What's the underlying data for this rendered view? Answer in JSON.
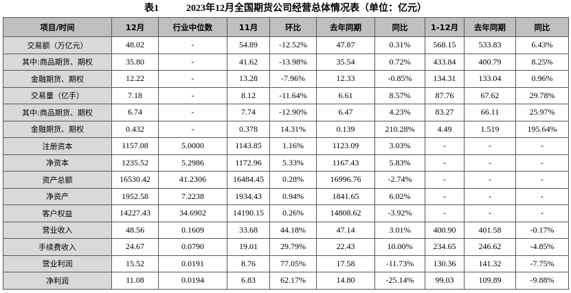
{
  "title": {
    "label": "表1",
    "text": "2023年12月全国期货公司经营总体情况表（单位：亿元）"
  },
  "table": {
    "header": [
      "项目/时间",
      "12月",
      "行业中位数",
      "11月",
      "环比",
      "去年同期",
      "同比",
      "1-12月",
      "去年同期",
      "同比"
    ],
    "rows": [
      [
        "交易额（万亿元）",
        "48.02",
        "-",
        "54.89",
        "-12.52%",
        "47.87",
        "0.31%",
        "568.15",
        "533.83",
        "6.43%"
      ],
      [
        "其中:商品期货、期权",
        "35.80",
        "-",
        "41.62",
        "-13.98%",
        "35.54",
        "0.72%",
        "433.84",
        "400.79",
        "8.25%"
      ],
      [
        "金融期货、期权",
        "12.22",
        "-",
        "13.28",
        "-7.96%",
        "12.33",
        "-0.85%",
        "134.31",
        "133.04",
        "0.96%"
      ],
      [
        "交易量（亿手）",
        "7.18",
        "-",
        "8.12",
        "-11.64%",
        "6.61",
        "8.57%",
        "87.76",
        "67.62",
        "29.78%"
      ],
      [
        "其中:商品期货、期权",
        "6.74",
        "-",
        "7.74",
        "-12.90%",
        "6.47",
        "4.23%",
        "83.27",
        "66.11",
        "25.97%"
      ],
      [
        "金融期货、期权",
        "0.432",
        "-",
        "0.378",
        "14.31%",
        "0.139",
        "210.28%",
        "4.49",
        "1.519",
        "195.64%"
      ],
      [
        "注册资本",
        "1157.08",
        "5.0000",
        "1143.85",
        "1.16%",
        "1123.09",
        "3.03%",
        "-",
        "-",
        "-"
      ],
      [
        "净资本",
        "1235.52",
        "5.2986",
        "1172.96",
        "5.33%",
        "1167.43",
        "5.83%",
        "-",
        "-",
        "-"
      ],
      [
        "资产总额",
        "16530.42",
        "41.2306",
        "16484.45",
        "0.28%",
        "16996.76",
        "-2.74%",
        "-",
        "-",
        "-"
      ],
      [
        "净资产",
        "1952.58",
        "7.2238",
        "1934.43",
        "0.94%",
        "1841.65",
        "6.02%",
        "-",
        "-",
        "-"
      ],
      [
        "客户权益",
        "14227.43",
        "34.6902",
        "14190.15",
        "0.26%",
        "14808.62",
        "-3.92%",
        "-",
        "-",
        "-"
      ],
      [
        "营业收入",
        "48.56",
        "0.1609",
        "33.68",
        "44.18%",
        "47.14",
        "3.01%",
        "400.90",
        "401.58",
        "-0.17%"
      ],
      [
        "手续费收入",
        "24.67",
        "0.0790",
        "19.01",
        "29.79%",
        "22.43",
        "10.00%",
        "234.65",
        "246.62",
        "-4.85%"
      ],
      [
        "营业利润",
        "15.52",
        "0.0191",
        "8.76",
        "77.05%",
        "17.58",
        "-11.73%",
        "130.36",
        "141.32",
        "-7.75%"
      ],
      [
        "净利润",
        "11.08",
        "0.0194",
        "6.83",
        "62.17%",
        "14.80",
        "-25.14%",
        "99.03",
        "109.89",
        "-9.88%"
      ]
    ]
  }
}
